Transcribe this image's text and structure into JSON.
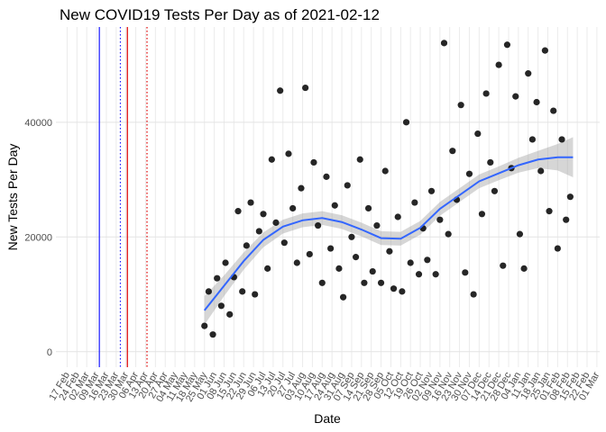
{
  "chart_data": {
    "type": "scatter",
    "title": "New COVID19 Tests Per Day as of 2021-02-12",
    "x_label": "Date",
    "y_label": "New Tests Per Day",
    "xlim": [
      "2020-02-09",
      "2021-03-03"
    ],
    "ylim": [
      -2700,
      56600
    ],
    "yticks": [
      0,
      20000,
      40000
    ],
    "grid": true,
    "xticks": [
      {
        "value": "2020-02-17",
        "label": "17 Feb"
      },
      {
        "value": "2020-02-24",
        "label": "24 Feb"
      },
      {
        "value": "2020-03-02",
        "label": "02 Mar"
      },
      {
        "value": "2020-03-09",
        "label": "09 Mar"
      },
      {
        "value": "2020-03-16",
        "label": "16 Mar"
      },
      {
        "value": "2020-03-23",
        "label": "23 Mar"
      },
      {
        "value": "2020-03-30",
        "label": "30 Mar"
      },
      {
        "value": "2020-04-06",
        "label": "06 Apr"
      },
      {
        "value": "2020-04-13",
        "label": "13 Apr"
      },
      {
        "value": "2020-04-20",
        "label": "20 Apr"
      },
      {
        "value": "2020-04-27",
        "label": "27 Apr"
      },
      {
        "value": "2020-05-04",
        "label": "04 May"
      },
      {
        "value": "2020-05-11",
        "label": "11 May"
      },
      {
        "value": "2020-05-18",
        "label": "18 May"
      },
      {
        "value": "2020-05-25",
        "label": "25 May"
      },
      {
        "value": "2020-06-01",
        "label": "01 Jun"
      },
      {
        "value": "2020-06-08",
        "label": "08 Jun"
      },
      {
        "value": "2020-06-15",
        "label": "15 Jun"
      },
      {
        "value": "2020-06-22",
        "label": "22 Jun"
      },
      {
        "value": "2020-06-29",
        "label": "29 Jun"
      },
      {
        "value": "2020-07-06",
        "label": "06 Jul"
      },
      {
        "value": "2020-07-13",
        "label": "13 Jul"
      },
      {
        "value": "2020-07-20",
        "label": "20 Jul"
      },
      {
        "value": "2020-07-27",
        "label": "27 Jul"
      },
      {
        "value": "2020-08-03",
        "label": "03 Aug"
      },
      {
        "value": "2020-08-10",
        "label": "10 Aug"
      },
      {
        "value": "2020-08-17",
        "label": "17 Aug"
      },
      {
        "value": "2020-08-24",
        "label": "24 Aug"
      },
      {
        "value": "2020-08-31",
        "label": "31 Aug"
      },
      {
        "value": "2020-09-07",
        "label": "07 Sep"
      },
      {
        "value": "2020-09-14",
        "label": "14 Sep"
      },
      {
        "value": "2020-09-21",
        "label": "21 Sep"
      },
      {
        "value": "2020-09-28",
        "label": "28 Sep"
      },
      {
        "value": "2020-10-05",
        "label": "05 Oct"
      },
      {
        "value": "2020-10-12",
        "label": "12 Oct"
      },
      {
        "value": "2020-10-19",
        "label": "19 Oct"
      },
      {
        "value": "2020-10-26",
        "label": "26 Oct"
      },
      {
        "value": "2020-11-02",
        "label": "02 Nov"
      },
      {
        "value": "2020-11-09",
        "label": "09 Nov"
      },
      {
        "value": "2020-11-16",
        "label": "16 Nov"
      },
      {
        "value": "2020-11-23",
        "label": "23 Nov"
      },
      {
        "value": "2020-11-30",
        "label": "30 Nov"
      },
      {
        "value": "2020-12-07",
        "label": "07 Dec"
      },
      {
        "value": "2020-12-14",
        "label": "14 Dec"
      },
      {
        "value": "2020-12-21",
        "label": "21 Dec"
      },
      {
        "value": "2020-12-28",
        "label": "28 Dec"
      },
      {
        "value": "2021-01-04",
        "label": "04 Jan"
      },
      {
        "value": "2021-01-11",
        "label": "11 Jan"
      },
      {
        "value": "2021-01-18",
        "label": "18 Jan"
      },
      {
        "value": "2021-01-25",
        "label": "25 Jan"
      },
      {
        "value": "2021-02-01",
        "label": "01 Feb"
      },
      {
        "value": "2021-02-08",
        "label": "08 Feb"
      },
      {
        "value": "2021-02-15",
        "label": "15 Feb"
      },
      {
        "value": "2021-02-22",
        "label": "22 Feb"
      },
      {
        "value": "2021-03-01",
        "label": "01 Mar"
      }
    ],
    "vlines": [
      {
        "x": "2020-03-11",
        "color": "#1a1aff",
        "dashed": false
      },
      {
        "x": "2020-03-26",
        "color": "#1a1aff",
        "dashed": true
      },
      {
        "x": "2020-03-31",
        "color": "#e00000",
        "dashed": false
      },
      {
        "x": "2020-04-14",
        "color": "#e00000",
        "dashed": true
      }
    ],
    "point_color": "#000000",
    "x": [
      "2020-05-25",
      "2020-05-28",
      "2020-05-31",
      "2020-06-03",
      "2020-06-06",
      "2020-06-09",
      "2020-06-12",
      "2020-06-15",
      "2020-06-18",
      "2020-06-21",
      "2020-06-24",
      "2020-06-27",
      "2020-06-30",
      "2020-07-03",
      "2020-07-06",
      "2020-07-09",
      "2020-07-12",
      "2020-07-15",
      "2020-07-18",
      "2020-07-21",
      "2020-07-24",
      "2020-07-27",
      "2020-07-30",
      "2020-08-02",
      "2020-08-05",
      "2020-08-08",
      "2020-08-11",
      "2020-08-14",
      "2020-08-17",
      "2020-08-20",
      "2020-08-23",
      "2020-08-26",
      "2020-08-29",
      "2020-09-01",
      "2020-09-04",
      "2020-09-07",
      "2020-09-10",
      "2020-09-13",
      "2020-09-16",
      "2020-09-19",
      "2020-09-22",
      "2020-09-25",
      "2020-09-28",
      "2020-10-01",
      "2020-10-04",
      "2020-10-07",
      "2020-10-10",
      "2020-10-13",
      "2020-10-16",
      "2020-10-19",
      "2020-10-22",
      "2020-10-25",
      "2020-10-28",
      "2020-10-31",
      "2020-11-03",
      "2020-11-06",
      "2020-11-09",
      "2020-11-12",
      "2020-11-15",
      "2020-11-18",
      "2020-11-21",
      "2020-11-24",
      "2020-11-27",
      "2020-11-30",
      "2020-12-03",
      "2020-12-06",
      "2020-12-09",
      "2020-12-12",
      "2020-12-15",
      "2020-12-18",
      "2020-12-21",
      "2020-12-24",
      "2020-12-27",
      "2020-12-30",
      "2021-01-02",
      "2021-01-05",
      "2021-01-08",
      "2021-01-11",
      "2021-01-14",
      "2021-01-17",
      "2021-01-20",
      "2021-01-23",
      "2021-01-26",
      "2021-01-29",
      "2021-02-01",
      "2021-02-04",
      "2021-02-07",
      "2021-02-10"
    ],
    "values": [
      4500,
      10500,
      3000,
      12800,
      8000,
      15500,
      6500,
      13000,
      24500,
      10500,
      18500,
      26000,
      10000,
      21000,
      24000,
      14500,
      33500,
      22500,
      45500,
      19000,
      34500,
      25000,
      15500,
      28500,
      46000,
      17000,
      33000,
      22000,
      12000,
      30500,
      18000,
      25500,
      14500,
      9500,
      29000,
      20000,
      16500,
      33500,
      12000,
      25000,
      14000,
      22000,
      12000,
      31500,
      17500,
      11000,
      23500,
      10500,
      40000,
      15500,
      26000,
      13500,
      21500,
      16000,
      28000,
      13500,
      23000,
      53800,
      20500,
      35000,
      26500,
      43000,
      13800,
      31000,
      10000,
      38000,
      24000,
      45000,
      33000,
      28000,
      50000,
      15000,
      53500,
      32000,
      44500,
      20500,
      14500,
      48500,
      37000,
      43500,
      31500,
      52500,
      24500,
      42000,
      18000,
      37000,
      23000,
      27000
    ],
    "smooth": {
      "color": "#3366ff",
      "band_color": "#999999",
      "x": [
        "2020-05-25",
        "2020-06-08",
        "2020-06-22",
        "2020-07-06",
        "2020-07-20",
        "2020-08-03",
        "2020-08-17",
        "2020-08-31",
        "2020-09-14",
        "2020-09-28",
        "2020-10-12",
        "2020-10-26",
        "2020-11-09",
        "2020-11-23",
        "2020-12-07",
        "2020-12-21",
        "2021-01-04",
        "2021-01-18",
        "2021-02-01",
        "2021-02-12"
      ],
      "values": [
        7200,
        11500,
        15800,
        19500,
        21800,
        22900,
        23300,
        22600,
        21300,
        19800,
        19700,
        21600,
        24900,
        27300,
        29700,
        31100,
        32500,
        33500,
        33900,
        33900
      ],
      "lower": [
        4700,
        9700,
        14300,
        18200,
        20600,
        21700,
        22100,
        21400,
        20100,
        18600,
        18500,
        20400,
        23700,
        26100,
        28500,
        29900,
        31200,
        32000,
        31600,
        30400
      ],
      "upper": [
        9700,
        13300,
        17300,
        20800,
        23000,
        24100,
        24500,
        23800,
        22500,
        21000,
        20900,
        22800,
        26100,
        28500,
        30900,
        32300,
        33800,
        35000,
        36200,
        37400
      ]
    }
  }
}
